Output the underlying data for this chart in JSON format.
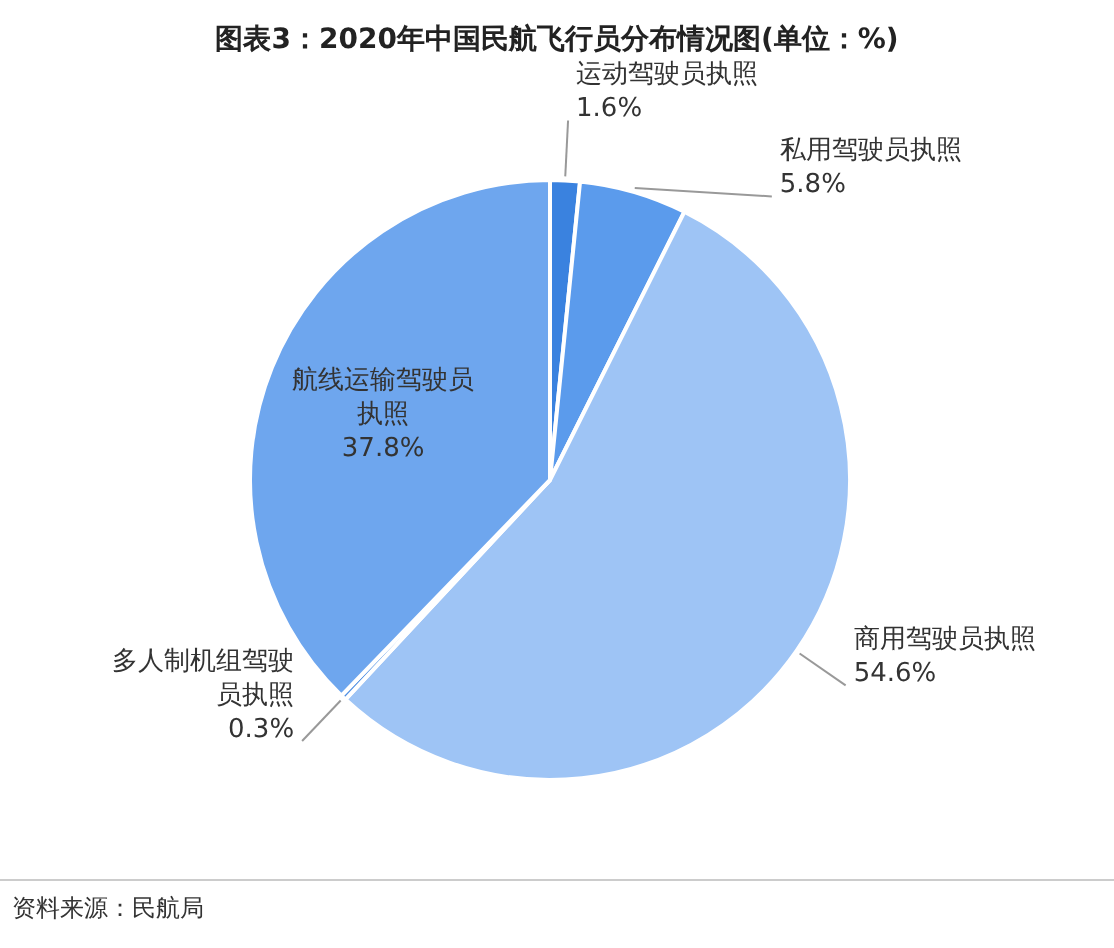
{
  "chart_data": {
    "type": "pie",
    "title": "图表3：2020年中国民航飞行员分布情况图(单位：%)",
    "categories": [
      "运动驾驶员执照",
      "私用驾驶员执照",
      "商用驾驶员执照",
      "多人制机组驾驶员执照",
      "航线运输驾驶员执照"
    ],
    "values": [
      1.6,
      5.8,
      54.6,
      0.3,
      37.8
    ],
    "value_labels": [
      "1.6%",
      "5.8%",
      "54.6%",
      "0.3%",
      "37.8%"
    ],
    "colors": [
      "#3a82df",
      "#5b9bec",
      "#9ec4f5",
      "#4f8fe3",
      "#6ea6ee"
    ],
    "annotations": [
      "资料来源：民航局"
    ]
  }
}
